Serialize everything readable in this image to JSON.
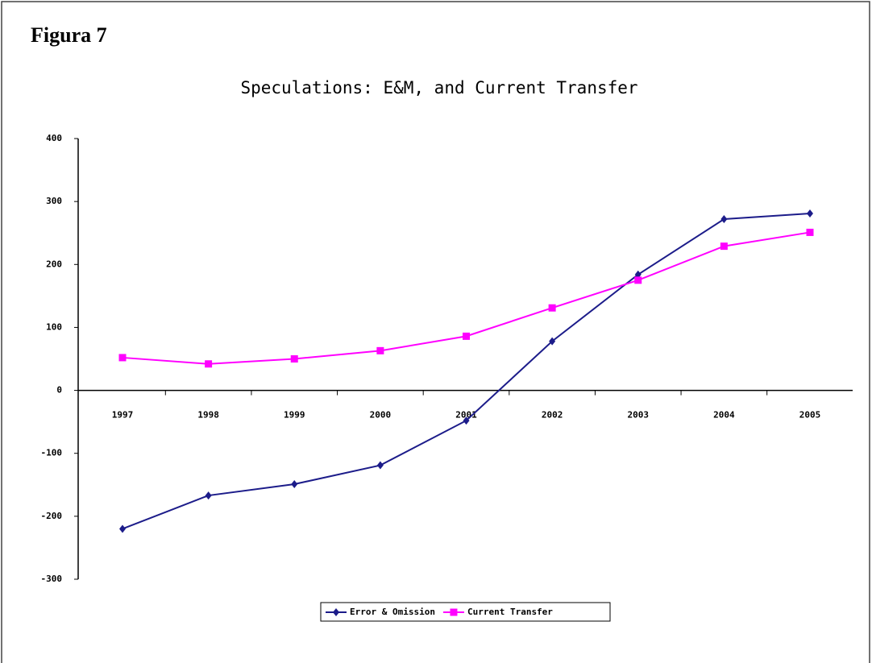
{
  "header": {
    "title": "Figura 7"
  },
  "chart_data": {
    "type": "line",
    "title": "Speculations: E&M, and Current Transfer",
    "categories": [
      "1997",
      "1998",
      "1999",
      "2000",
      "2001",
      "2002",
      "2003",
      "2004",
      "2005"
    ],
    "series": [
      {
        "name": "Error & Omission",
        "color": "#1c1c8a",
        "marker": "diamond",
        "values": [
          -220,
          -167,
          -149,
          -119,
          -48,
          78,
          184,
          272,
          281
        ]
      },
      {
        "name": "Current Transfer",
        "color": "#ff00ff",
        "marker": "square",
        "values": [
          52,
          42,
          50,
          63,
          86,
          131,
          175,
          229,
          251
        ]
      }
    ],
    "ylim": [
      -300,
      400
    ],
    "yticks": [
      -300,
      -200,
      -100,
      0,
      100,
      200,
      300,
      400
    ],
    "grid": false,
    "legend": "bottom"
  }
}
